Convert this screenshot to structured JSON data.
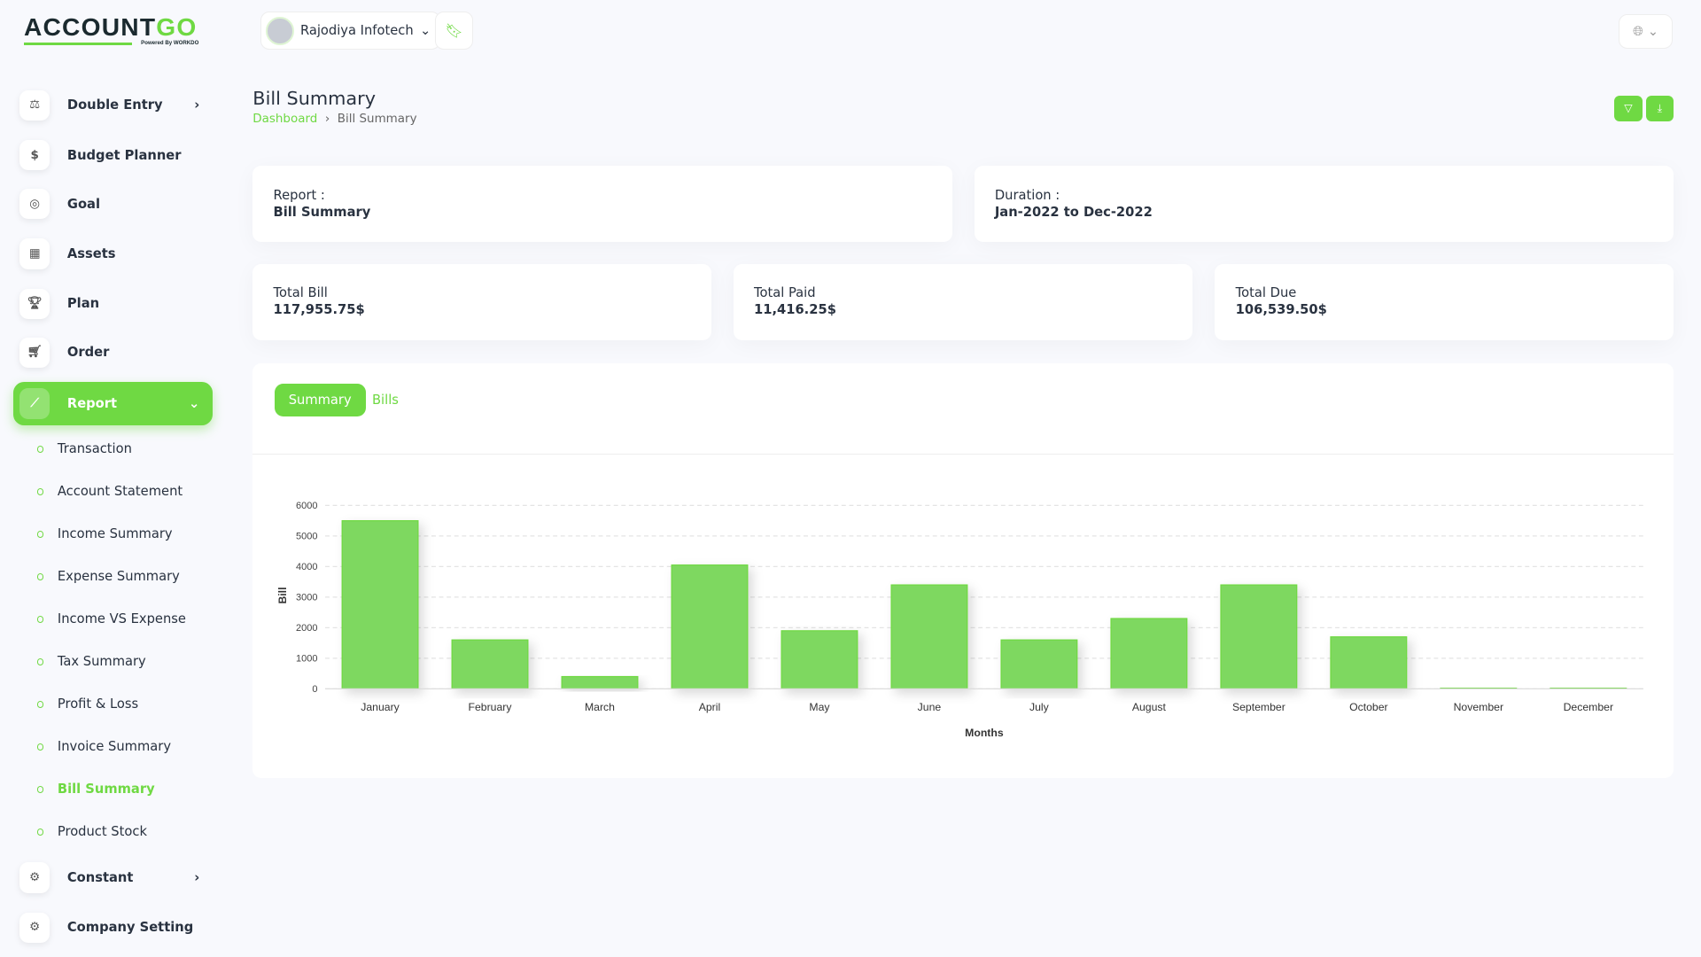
{
  "brand": {
    "logo_text": "ACCOUNTGO",
    "logo_tagline": "Powered By WORKDO"
  },
  "header": {
    "company": "Rajodiya Infotech"
  },
  "sidebar": {
    "items": [
      {
        "label": "Double Entry",
        "icon": "balance-scale-icon",
        "chevron": true
      },
      {
        "label": "Budget Planner",
        "icon": "budget-icon"
      },
      {
        "label": "Goal",
        "icon": "target-icon"
      },
      {
        "label": "Assets",
        "icon": "calculator-icon"
      },
      {
        "label": "Plan",
        "icon": "trophy-icon"
      },
      {
        "label": "Order",
        "icon": "cart-icon"
      },
      {
        "label": "Report",
        "icon": "chart-line-icon",
        "active": true
      },
      {
        "label": "Constant",
        "icon": "gear-icon",
        "chevron": true
      },
      {
        "label": "Company Setting",
        "icon": "gear-icon"
      }
    ],
    "report_sub": [
      "Transaction",
      "Account Statement",
      "Income Summary",
      "Expense Summary",
      "Income VS Expense",
      "Tax Summary",
      "Profit & Loss",
      "Invoice Summary",
      "Bill Summary",
      "Product Stock"
    ],
    "active_sub": "Bill Summary"
  },
  "page": {
    "title": "Bill Summary",
    "breadcrumb": [
      "Dashboard",
      "Bill Summary"
    ]
  },
  "info": {
    "report_label": "Report :",
    "report_value": "Bill Summary",
    "duration_label": "Duration :",
    "duration_value": "Jan-2022 to Dec-2022"
  },
  "totals": [
    {
      "label": "Total Bill",
      "value": "117,955.75$"
    },
    {
      "label": "Total Paid",
      "value": "11,416.25$"
    },
    {
      "label": "Total Due",
      "value": "106,539.50$"
    }
  ],
  "tabs": [
    "Summary",
    "Bills"
  ],
  "accent": "#6fd943",
  "chart_data": {
    "type": "bar",
    "categories": [
      "January",
      "February",
      "March",
      "April",
      "May",
      "June",
      "July",
      "August",
      "September",
      "October",
      "November",
      "December"
    ],
    "values": [
      5500,
      1600,
      400,
      4050,
      1900,
      3400,
      1600,
      2300,
      3400,
      1700,
      30,
      30
    ],
    "xlabel": "Months",
    "ylabel": "Bill",
    "ylim": [
      0,
      6000
    ],
    "yticks": [
      0,
      1000,
      2000,
      3000,
      4000,
      5000,
      6000
    ],
    "grid": true,
    "legend": "none"
  }
}
